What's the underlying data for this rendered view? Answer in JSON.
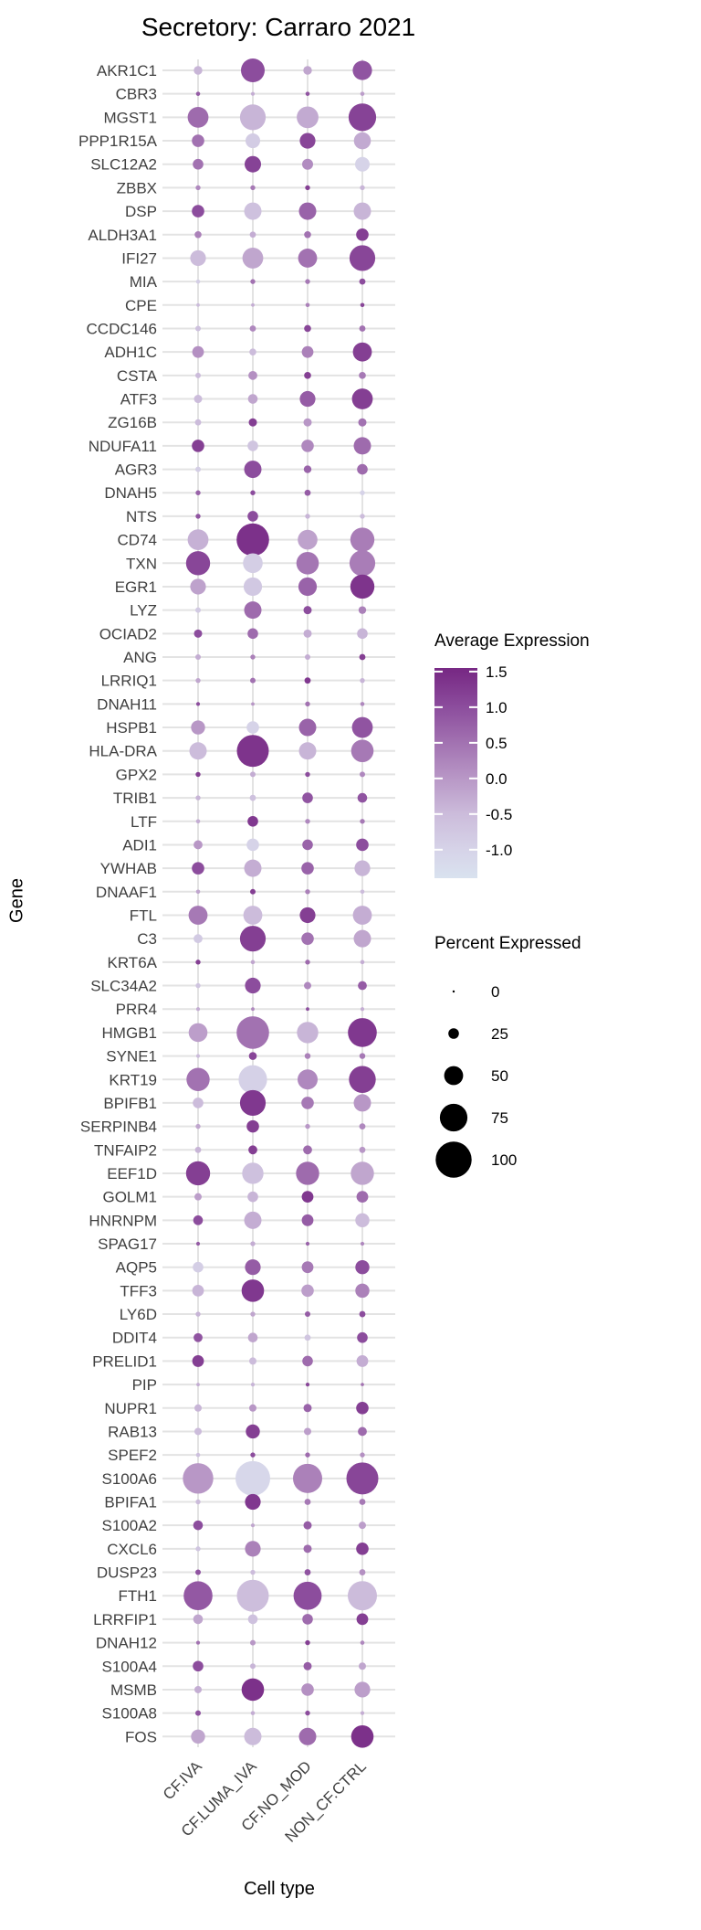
{
  "title": "Secretory: Carraro 2021",
  "axes": {
    "x_title": "Cell type",
    "y_title": "Gene"
  },
  "legend": {
    "expression": {
      "title": "Average Expression",
      "tick_labels": [
        "1.5",
        "1.0",
        "0.5",
        "0.0",
        "-0.5",
        "-1.0"
      ],
      "tick_values": [
        1.5,
        1.0,
        0.5,
        0.0,
        -0.5,
        -1.0
      ],
      "bar_range": [
        1.55,
        -1.4
      ],
      "gradient_stops": [
        {
          "value": 1.5,
          "color": "#782a85"
        },
        {
          "value": 1.0,
          "color": "#8c4d9d"
        },
        {
          "value": 0.5,
          "color": "#a272b1"
        },
        {
          "value": 0.0,
          "color": "#b897c6"
        },
        {
          "value": -0.5,
          "color": "#ccbcdb"
        },
        {
          "value": -1.0,
          "color": "#d6d3e8"
        },
        {
          "value": -1.4,
          "color": "#d9e2ef"
        }
      ]
    },
    "percent": {
      "title": "Percent Expressed",
      "size_labels": [
        "0",
        "25",
        "50",
        "75",
        "100"
      ],
      "size_values": [
        0,
        25,
        50,
        75,
        100
      ],
      "dot_color": "#000000"
    }
  },
  "chart_data": {
    "type": "scatter",
    "subtype": "dot-plot",
    "title": "Secretory: Carraro 2021",
    "xlabel": "Cell type",
    "ylabel": "Gene",
    "size_encoding": "percent_expressed_0_to_100",
    "color_encoding": "average_expression_-1.4_to_1.5",
    "categories": [
      "CF.IVA",
      "CF.LUMA_IVA",
      "CF.NO_MOD",
      "NON_CF.CTRL"
    ],
    "genes": [
      "AKR1C1",
      "CBR3",
      "MGST1",
      "PPP1R15A",
      "SLC12A2",
      "ZBBX",
      "DSP",
      "ALDH3A1",
      "IFI27",
      "MIA",
      "CPE",
      "CCDC146",
      "ADH1C",
      "CSTA",
      "ATF3",
      "ZG16B",
      "NDUFA11",
      "AGR3",
      "DNAH5",
      "NTS",
      "CD74",
      "TXN",
      "EGR1",
      "LYZ",
      "OCIAD2",
      "ANG",
      "LRRIQ1",
      "DNAH11",
      "HSPB1",
      "HLA-DRA",
      "GPX2",
      "TRIB1",
      "LTF",
      "ADI1",
      "YWHAB",
      "DNAAF1",
      "FTL",
      "C3",
      "KRT6A",
      "SLC34A2",
      "PRR4",
      "HMGB1",
      "SYNE1",
      "KRT19",
      "BPIFB1",
      "SERPINB4",
      "TNFAIP2",
      "EEF1D",
      "GOLM1",
      "HNRNPM",
      "SPAG17",
      "AQP5",
      "TFF3",
      "LY6D",
      "DDIT4",
      "PRELID1",
      "PIP",
      "NUPR1",
      "RAB13",
      "SPEF2",
      "S100A6",
      "BPIFA1",
      "S100A2",
      "CXCL6",
      "DUSP23",
      "FTH1",
      "LRRFIP1",
      "DNAH12",
      "S100A4",
      "MSMB",
      "S100A8",
      "FOS"
    ],
    "points": [
      [
        [
          19,
          -0.4
        ],
        [
          64,
          1.0
        ],
        [
          19,
          -0.2
        ],
        [
          51,
          0.9
        ]
      ],
      [
        [
          6,
          0.8
        ],
        [
          5,
          -0.3
        ],
        [
          6,
          0.9
        ],
        [
          6,
          -0.1
        ]
      ],
      [
        [
          55,
          0.6
        ],
        [
          70,
          -0.4
        ],
        [
          58,
          -0.25
        ],
        [
          75,
          1.15
        ]
      ],
      [
        [
          30,
          0.5
        ],
        [
          37,
          -0.85
        ],
        [
          40,
          1.1
        ],
        [
          44,
          -0.25
        ]
      ],
      [
        [
          25,
          0.5
        ],
        [
          42,
          1.15
        ],
        [
          26,
          0.15
        ],
        [
          37,
          -1.0
        ]
      ],
      [
        [
          8,
          0.2
        ],
        [
          8,
          0.4
        ],
        [
          8,
          1.2
        ],
        [
          8,
          -0.4
        ]
      ],
      [
        [
          30,
          1.0
        ],
        [
          45,
          -0.6
        ],
        [
          45,
          0.7
        ],
        [
          45,
          -0.4
        ]
      ],
      [
        [
          14,
          0.3
        ],
        [
          12,
          -0.3
        ],
        [
          14,
          0.5
        ],
        [
          30,
          1.2
        ]
      ],
      [
        [
          40,
          -0.5
        ],
        [
          55,
          -0.2
        ],
        [
          50,
          0.5
        ],
        [
          70,
          1.1
        ]
      ],
      [
        [
          6,
          -0.9
        ],
        [
          8,
          0.5
        ],
        [
          8,
          0.4
        ],
        [
          12,
          1.0
        ]
      ],
      [
        [
          4,
          -0.5
        ],
        [
          4,
          -0.3
        ],
        [
          6,
          0.3
        ],
        [
          6,
          1.1
        ]
      ],
      [
        [
          10,
          -0.6
        ],
        [
          12,
          0.2
        ],
        [
          14,
          1.1
        ],
        [
          12,
          0.5
        ]
      ],
      [
        [
          28,
          0.1
        ],
        [
          14,
          -0.5
        ],
        [
          28,
          0.3
        ],
        [
          50,
          1.2
        ]
      ],
      [
        [
          10,
          -0.5
        ],
        [
          20,
          0.1
        ],
        [
          14,
          1.2
        ],
        [
          14,
          0.4
        ]
      ],
      [
        [
          18,
          -0.5
        ],
        [
          22,
          -0.2
        ],
        [
          40,
          0.8
        ],
        [
          55,
          1.2
        ]
      ],
      [
        [
          12,
          -0.5
        ],
        [
          18,
          1.2
        ],
        [
          18,
          0.0
        ],
        [
          18,
          0.5
        ]
      ],
      [
        [
          30,
          1.2
        ],
        [
          25,
          -0.7
        ],
        [
          30,
          0.2
        ],
        [
          45,
          0.6
        ]
      ],
      [
        [
          10,
          -0.9
        ],
        [
          45,
          1.0
        ],
        [
          16,
          0.7
        ],
        [
          25,
          0.6
        ]
      ],
      [
        [
          8,
          0.7
        ],
        [
          8,
          1.0
        ],
        [
          12,
          0.8
        ],
        [
          8,
          -1.0
        ]
      ],
      [
        [
          8,
          0.9
        ],
        [
          25,
          1.0
        ],
        [
          8,
          -0.4
        ],
        [
          8,
          -0.5
        ]
      ],
      [
        [
          55,
          -0.35
        ],
        [
          90,
          1.4
        ],
        [
          52,
          -0.15
        ],
        [
          65,
          0.35
        ]
      ],
      [
        [
          65,
          1.1
        ],
        [
          52,
          -0.9
        ],
        [
          60,
          0.45
        ],
        [
          70,
          0.35
        ]
      ],
      [
        [
          40,
          -0.15
        ],
        [
          48,
          -0.75
        ],
        [
          48,
          0.7
        ],
        [
          65,
          1.35
        ]
      ],
      [
        [
          10,
          -0.8
        ],
        [
          45,
          0.6
        ],
        [
          18,
          1.0
        ],
        [
          16,
          0.3
        ]
      ],
      [
        [
          18,
          1.0
        ],
        [
          25,
          0.6
        ],
        [
          18,
          -0.3
        ],
        [
          25,
          -0.4
        ]
      ],
      [
        [
          10,
          -0.3
        ],
        [
          8,
          0.3
        ],
        [
          10,
          -0.3
        ],
        [
          12,
          1.2
        ]
      ],
      [
        [
          8,
          -0.2
        ],
        [
          10,
          0.5
        ],
        [
          12,
          1.3
        ],
        [
          8,
          -0.4
        ]
      ],
      [
        [
          5,
          1.0
        ],
        [
          4,
          0.0
        ],
        [
          8,
          0.5
        ],
        [
          6,
          0.2
        ]
      ],
      [
        [
          35,
          0.0
        ],
        [
          30,
          -1.0
        ],
        [
          45,
          0.7
        ],
        [
          55,
          0.9
        ]
      ],
      [
        [
          45,
          -0.5
        ],
        [
          88,
          1.35
        ],
        [
          45,
          -0.4
        ],
        [
          60,
          0.4
        ]
      ],
      [
        [
          8,
          1.2
        ],
        [
          10,
          -0.3
        ],
        [
          8,
          1.0
        ],
        [
          10,
          0.2
        ]
      ],
      [
        [
          8,
          -0.4
        ],
        [
          12,
          -0.6
        ],
        [
          25,
          0.9
        ],
        [
          22,
          0.9
        ]
      ],
      [
        [
          6,
          -0.3
        ],
        [
          25,
          1.3
        ],
        [
          8,
          0.2
        ],
        [
          8,
          0.4
        ]
      ],
      [
        [
          20,
          0.0
        ],
        [
          30,
          -1.0
        ],
        [
          25,
          0.7
        ],
        [
          30,
          1.0
        ]
      ],
      [
        [
          30,
          1.0
        ],
        [
          45,
          -0.3
        ],
        [
          30,
          0.7
        ],
        [
          40,
          -0.4
        ]
      ],
      [
        [
          6,
          -0.2
        ],
        [
          10,
          1.2
        ],
        [
          8,
          0.3
        ],
        [
          6,
          -0.5
        ]
      ],
      [
        [
          50,
          0.4
        ],
        [
          50,
          -0.5
        ],
        [
          40,
          1.2
        ],
        [
          50,
          -0.3
        ]
      ],
      [
        [
          20,
          -0.8
        ],
        [
          70,
          1.2
        ],
        [
          30,
          0.5
        ],
        [
          45,
          -0.2
        ]
      ],
      [
        [
          8,
          1.2
        ],
        [
          6,
          -0.2
        ],
        [
          8,
          0.6
        ],
        [
          6,
          -0.3
        ]
      ],
      [
        [
          8,
          -0.7
        ],
        [
          40,
          1.0
        ],
        [
          15,
          0.2
        ],
        [
          20,
          0.8
        ]
      ],
      [
        [
          5,
          -0.3
        ],
        [
          4,
          0.2
        ],
        [
          4,
          1.0
        ],
        [
          5,
          -0.3
        ]
      ],
      [
        [
          49,
          -0.1
        ],
        [
          90,
          0.5
        ],
        [
          57,
          -0.4
        ],
        [
          79,
          1.3
        ]
      ],
      [
        [
          5,
          -0.5
        ],
        [
          17,
          1.1
        ],
        [
          11,
          0.3
        ],
        [
          11,
          0.4
        ]
      ],
      [
        [
          62,
          0.5
        ],
        [
          78,
          -0.95
        ],
        [
          53,
          0.2
        ],
        [
          73,
          1.2
        ]
      ],
      [
        [
          25,
          -0.5
        ],
        [
          70,
          1.3
        ],
        [
          30,
          0.4
        ],
        [
          45,
          0.0
        ]
      ],
      [
        [
          8,
          -0.2
        ],
        [
          30,
          1.2
        ],
        [
          8,
          0.0
        ],
        [
          12,
          0.2
        ]
      ],
      [
        [
          12,
          -0.4
        ],
        [
          20,
          1.2
        ],
        [
          20,
          0.6
        ],
        [
          12,
          0.0
        ]
      ],
      [
        [
          65,
          1.2
        ],
        [
          57,
          -0.6
        ],
        [
          62,
          0.6
        ],
        [
          62,
          -0.2
        ]
      ],
      [
        [
          15,
          -0.1
        ],
        [
          25,
          -0.4
        ],
        [
          28,
          1.3
        ],
        [
          28,
          0.6
        ]
      ],
      [
        [
          22,
          1.0
        ],
        [
          45,
          -0.3
        ],
        [
          28,
          0.8
        ],
        [
          35,
          -0.5
        ]
      ],
      [
        [
          5,
          0.8
        ],
        [
          8,
          -0.3
        ],
        [
          5,
          0.7
        ],
        [
          5,
          0.2
        ]
      ],
      [
        [
          25,
          -0.9
        ],
        [
          40,
          0.8
        ],
        [
          28,
          0.4
        ],
        [
          35,
          1.0
        ]
      ],
      [
        [
          28,
          -0.4
        ],
        [
          60,
          1.3
        ],
        [
          30,
          -0.1
        ],
        [
          35,
          0.3
        ]
      ],
      [
        [
          8,
          -0.4
        ],
        [
          8,
          -0.2
        ],
        [
          10,
          0.8
        ],
        [
          12,
          1.0
        ]
      ],
      [
        [
          20,
          0.9
        ],
        [
          22,
          -0.2
        ],
        [
          12,
          -0.7
        ],
        [
          25,
          1.0
        ]
      ],
      [
        [
          28,
          1.2
        ],
        [
          15,
          -0.5
        ],
        [
          25,
          0.6
        ],
        [
          28,
          -0.3
        ]
      ],
      [
        [
          4,
          -0.3
        ],
        [
          5,
          -0.4
        ],
        [
          5,
          1.1
        ],
        [
          3,
          0.5
        ]
      ],
      [
        [
          15,
          -0.4
        ],
        [
          15,
          0.0
        ],
        [
          18,
          0.7
        ],
        [
          30,
          1.2
        ]
      ],
      [
        [
          15,
          -0.5
        ],
        [
          35,
          1.2
        ],
        [
          15,
          -0.1
        ],
        [
          20,
          0.6
        ]
      ],
      [
        [
          6,
          -0.6
        ],
        [
          8,
          1.0
        ],
        [
          8,
          0.6
        ],
        [
          8,
          0.1
        ]
      ],
      [
        [
          84,
          0.0
        ],
        [
          96,
          -1.1
        ],
        [
          80,
          0.3
        ],
        [
          88,
          1.1
        ]
      ],
      [
        [
          8,
          -0.5
        ],
        [
          40,
          1.3
        ],
        [
          12,
          0.4
        ],
        [
          12,
          0.4
        ]
      ],
      [
        [
          22,
          1.0
        ],
        [
          5,
          -0.2
        ],
        [
          18,
          0.8
        ],
        [
          15,
          -0.1
        ]
      ],
      [
        [
          8,
          -0.7
        ],
        [
          40,
          0.3
        ],
        [
          18,
          0.6
        ],
        [
          30,
          1.2
        ]
      ],
      [
        [
          10,
          0.9
        ],
        [
          8,
          -0.5
        ],
        [
          12,
          0.9
        ],
        [
          12,
          0.1
        ]
      ],
      [
        [
          79,
          0.85
        ],
        [
          88,
          -0.55
        ],
        [
          77,
          1.0
        ],
        [
          80,
          -0.5
        ]
      ],
      [
        [
          22,
          -0.2
        ],
        [
          22,
          -0.6
        ],
        [
          25,
          0.6
        ],
        [
          28,
          1.2
        ]
      ],
      [
        [
          5,
          0.5
        ],
        [
          10,
          0.0
        ],
        [
          8,
          1.2
        ],
        [
          6,
          0.2
        ]
      ],
      [
        [
          25,
          1.0
        ],
        [
          10,
          -0.4
        ],
        [
          18,
          0.8
        ],
        [
          15,
          -0.2
        ]
      ],
      [
        [
          15,
          -0.3
        ],
        [
          60,
          1.4
        ],
        [
          30,
          0.1
        ],
        [
          40,
          -0.1
        ]
      ],
      [
        [
          10,
          0.9
        ],
        [
          6,
          -0.3
        ],
        [
          8,
          1.0
        ],
        [
          5,
          -0.3
        ]
      ],
      [
        [
          35,
          -0.2
        ],
        [
          45,
          -0.5
        ],
        [
          45,
          0.6
        ],
        [
          60,
          1.4
        ]
      ]
    ]
  }
}
